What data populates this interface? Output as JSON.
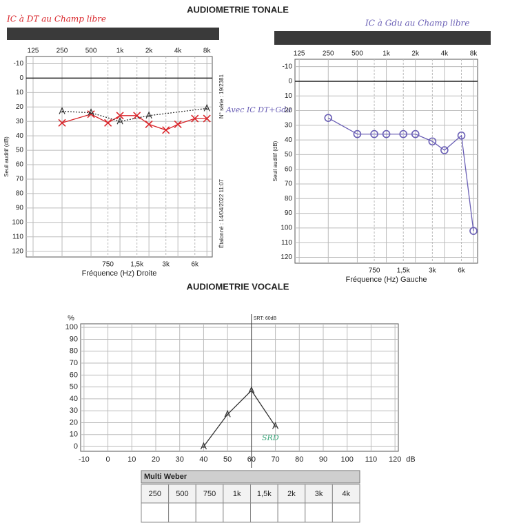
{
  "header": {
    "title_tonal": "AUDIOMETRIE TONALE",
    "title_vocal": "AUDIOMETRIE VOCALE"
  },
  "chart_data": [
    {
      "type": "audiogram",
      "note": "IC à DT au Champ libre",
      "note_color": "#d9262b",
      "xlabel": "Fréquence (Hz) Droite",
      "ylabel": "Seuil auditif (dB)",
      "log_x": true,
      "y_inverted": true,
      "xlim": [
        106,
        9100
      ],
      "ylim": [
        -15,
        124
      ],
      "xticks": [
        125,
        250,
        500,
        {
          "value": 1000,
          "label": "1k"
        },
        {
          "value": 2000,
          "label": "2k"
        },
        {
          "value": 4000,
          "label": "4k"
        },
        {
          "value": 8000,
          "label": "8k"
        }
      ],
      "xticks_bottom": [
        750,
        {
          "value": 1500,
          "label": "1,5k"
        },
        {
          "value": 3000,
          "label": "3k"
        },
        {
          "value": 6000,
          "label": "6k"
        }
      ],
      "yticks": [
        -10,
        0,
        10,
        20,
        30,
        40,
        50,
        60,
        70,
        80,
        90,
        100,
        110,
        120
      ],
      "reference_line": 0,
      "grid": true,
      "series": [
        {
          "color": "#d9262b",
          "marker": "x",
          "linestyle": "solid",
          "x": [
            250,
            500,
            750,
            1000,
            1500,
            2000,
            3000,
            4000,
            6000,
            8000
          ],
          "values": [
            31,
            25,
            31,
            26,
            26,
            32,
            36,
            32,
            28,
            28
          ]
        },
        {
          "color": "#333333",
          "marker": "A",
          "linestyle": "dotted",
          "x": [
            250,
            500,
            1000,
            2000,
            8000
          ],
          "values": [
            23,
            24,
            30,
            26,
            21
          ]
        }
      ],
      "side_texts": [
        "N° série : 19/2381",
        "Étalonné : 14/04/2022 11:07"
      ],
      "annotation": "Avec IC DT+Gdu",
      "annotation_color": "#6a5fb5"
    },
    {
      "type": "audiogram",
      "note": "IC à Gdu au Champ libre",
      "note_color": "#6a5fb5",
      "xlabel": "Fréquence (Hz) Gauche",
      "ylabel": "Seuil auditif (dB)",
      "log_x": true,
      "y_inverted": true,
      "xlim": [
        113,
        8830
      ],
      "ylim": [
        -15,
        124
      ],
      "xticks": [
        125,
        250,
        500,
        {
          "value": 1000,
          "label": "1k"
        },
        {
          "value": 2000,
          "label": "2k"
        },
        {
          "value": 4000,
          "label": "4k"
        },
        {
          "value": 8000,
          "label": "8k"
        }
      ],
      "xticks_bottom": [
        750,
        {
          "value": 1500,
          "label": "1,5k"
        },
        {
          "value": 3000,
          "label": "3k"
        },
        {
          "value": 6000,
          "label": "6k"
        }
      ],
      "yticks": [
        -10,
        0,
        10,
        20,
        30,
        40,
        50,
        60,
        70,
        80,
        90,
        100,
        110,
        120
      ],
      "reference_line": 0,
      "grid": true,
      "series": [
        {
          "color": "#6a5fb5",
          "marker": "o",
          "linestyle": "solid",
          "x": [
            250,
            500,
            750,
            1000,
            1500,
            2000,
            3000,
            4000,
            6000,
            8000
          ],
          "values": [
            25,
            36,
            36,
            36,
            36,
            36,
            41,
            47,
            37,
            102
          ]
        }
      ]
    },
    {
      "type": "line",
      "ylabel": "%",
      "xlabel": "dB",
      "xlim": [
        -11.4,
        121.4
      ],
      "ylim": [
        -4,
        103
      ],
      "xticks": [
        -10,
        0,
        10,
        20,
        30,
        40,
        50,
        60,
        70,
        80,
        90,
        100,
        110,
        120
      ],
      "yticks": [
        0,
        10,
        20,
        30,
        40,
        50,
        60,
        70,
        80,
        90,
        100
      ],
      "grid": true,
      "vline": 60,
      "vline_label": "SRT: 60dB",
      "series": [
        {
          "color": "#333333",
          "marker": "A",
          "linestyle": "solid",
          "x": [
            40,
            50,
            60,
            70
          ],
          "values": [
            0,
            27,
            47,
            17
          ]
        }
      ],
      "annotation": "SRD",
      "annotation_color": "#3aa57a"
    }
  ],
  "table": {
    "title": "Multi Weber",
    "headers": [
      "250",
      "500",
      "750",
      "1k",
      "1,5k",
      "2k",
      "3k",
      "4k"
    ]
  }
}
